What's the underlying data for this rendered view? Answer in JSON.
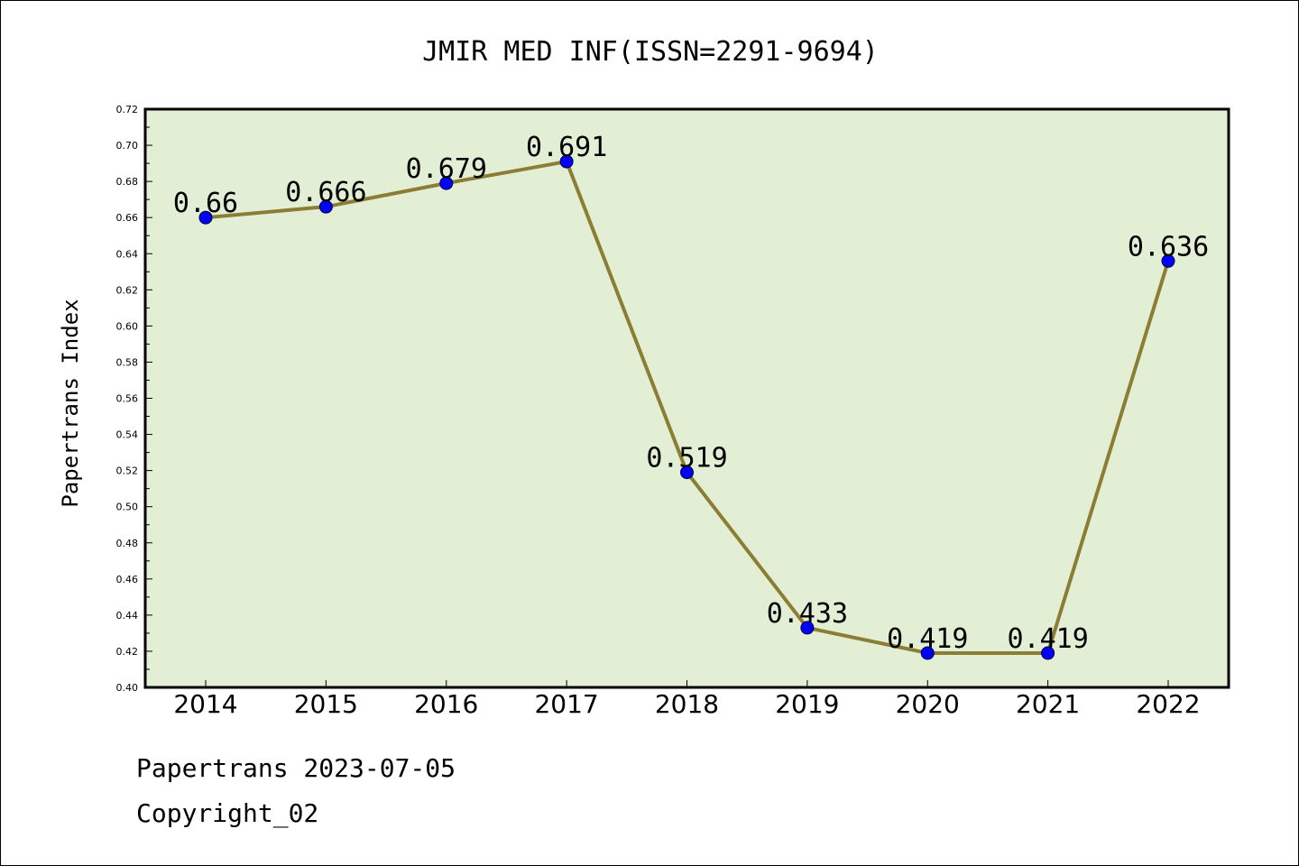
{
  "chart_data": {
    "type": "line",
    "title": "JMIR MED INF(ISSN=2291-9694)",
    "xlabel": "",
    "ylabel": "Papertrans Index",
    "categories": [
      "2014",
      "2015",
      "2016",
      "2017",
      "2018",
      "2019",
      "2020",
      "2021",
      "2022"
    ],
    "series": [
      {
        "values": [
          0.66,
          0.666,
          0.679,
          0.691,
          0.519,
          0.433,
          0.419,
          0.419,
          0.636
        ],
        "labels": [
          "0.66",
          "0.666",
          "0.679",
          "0.691",
          "0.519",
          "0.433",
          "0.419",
          "0.419",
          "0.636"
        ]
      }
    ],
    "ylim": [
      0.4,
      0.72
    ],
    "yticks": [
      "0.40",
      "0.42",
      "0.44",
      "0.46",
      "0.48",
      "0.50",
      "0.52",
      "0.54",
      "0.56",
      "0.58",
      "0.60",
      "0.62",
      "0.64",
      "0.66",
      "0.68",
      "0.70",
      "0.72"
    ],
    "grid": false,
    "legend": "none",
    "colors": {
      "plot_background": "#e2efd4",
      "line": "#8b7d34",
      "marker": "#0000ff"
    }
  },
  "footer": {
    "line1": "Papertrans 2023-07-05",
    "line2": "Copyright_02"
  }
}
